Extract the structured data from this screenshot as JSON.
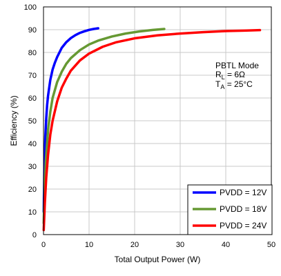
{
  "chart_data": {
    "type": "line",
    "title": "",
    "xlabel": "Total Output Power (W)",
    "ylabel": "Efficiency (%)",
    "xlim": [
      0,
      50
    ],
    "ylim": [
      0,
      100
    ],
    "xticks": [
      0,
      10,
      20,
      30,
      40,
      50
    ],
    "yticks": [
      0,
      10,
      20,
      30,
      40,
      50,
      60,
      70,
      80,
      90,
      100
    ],
    "grid": true,
    "legend_position": "bottom-right",
    "annotation": {
      "line1": "PBTL Mode",
      "line2_main": "R",
      "line2_sub": "L",
      "line2_rest": " = 6Ω",
      "line3_main": "T",
      "line3_sub": "A",
      "line3_rest": " = 25°C"
    },
    "series": [
      {
        "name": "PVDD = 12V",
        "color": "#0000ff",
        "x": [
          0.05,
          0.2,
          0.4,
          0.6,
          0.8,
          1.0,
          1.5,
          2.0,
          2.5,
          3.0,
          4.0,
          5.0,
          6.0,
          7.0,
          8.0,
          9.0,
          10.0,
          11.0,
          12.0
        ],
        "y": [
          10,
          30,
          43,
          51,
          57,
          61,
          68,
          72.5,
          75.5,
          78,
          82,
          84.5,
          86.3,
          87.6,
          88.6,
          89.3,
          89.9,
          90.3,
          90.6
        ]
      },
      {
        "name": "PVDD = 18V",
        "color": "#669933",
        "x": [
          0.05,
          0.2,
          0.5,
          1.0,
          1.5,
          2.0,
          3.0,
          4.0,
          5.0,
          6.0,
          8.0,
          10.0,
          12.0,
          15.0,
          18.0,
          21.0,
          24.0,
          26.5
        ],
        "y": [
          5,
          17,
          32,
          46,
          54,
          60,
          67,
          71.5,
          75,
          77.5,
          81,
          83.5,
          85.2,
          87,
          88.3,
          89.2,
          89.9,
          90.3
        ]
      },
      {
        "name": "PVDD = 24V",
        "color": "#ff0000",
        "x": [
          0.05,
          0.3,
          0.6,
          1.0,
          1.5,
          2.0,
          3.0,
          4.0,
          5.0,
          6.0,
          8.0,
          10.0,
          13.0,
          16.0,
          20.0,
          25.0,
          30.0,
          35.0,
          40.0,
          44.0,
          47.5
        ],
        "y": [
          2,
          14,
          25,
          35,
          44,
          50,
          58.5,
          64.5,
          68.5,
          72,
          76.5,
          79.5,
          82.5,
          84.5,
          86.2,
          87.5,
          88.3,
          88.9,
          89.4,
          89.6,
          89.8
        ]
      }
    ]
  }
}
